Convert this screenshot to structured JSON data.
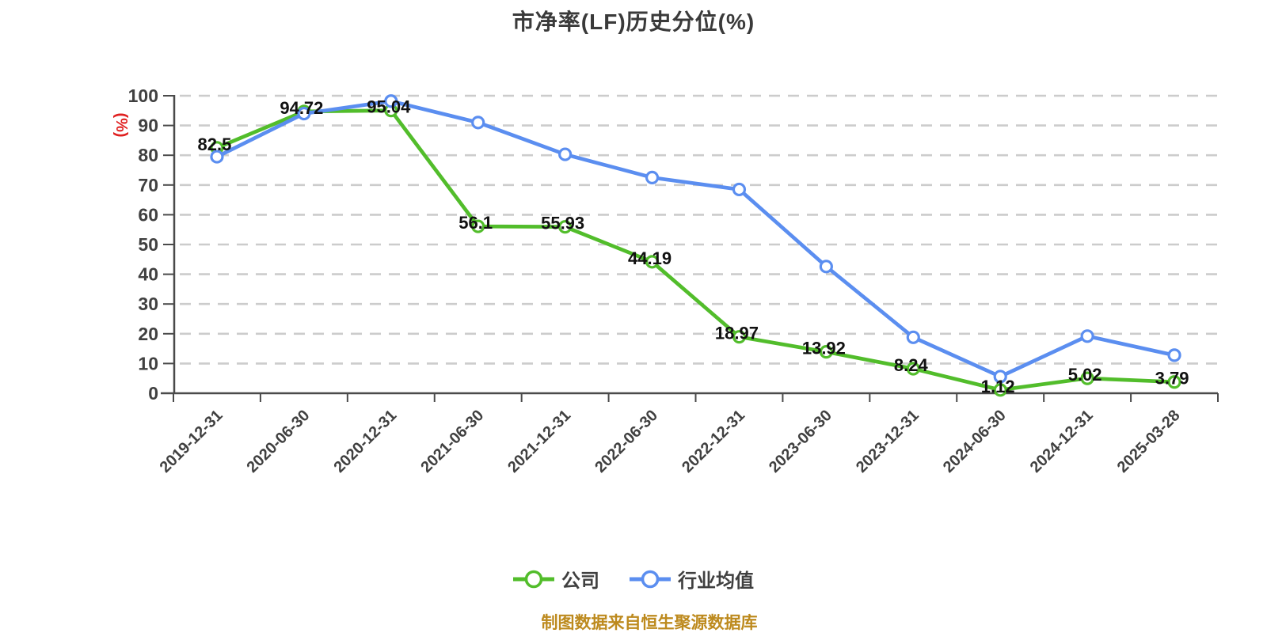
{
  "footer": "制图数据来自恒生聚源数据库",
  "chart_data": {
    "type": "line",
    "title": "市净率(LF)历史分位(%)",
    "y_axis_unit": "(%)",
    "ylim": [
      0,
      100
    ],
    "y_ticks": [
      0,
      10,
      20,
      30,
      40,
      50,
      60,
      70,
      80,
      90,
      100
    ],
    "grid": "horizontal-dashed",
    "legend_position": "bottom-center",
    "x_label_rotation": 45,
    "categories": [
      "2019-12-31",
      "2020-06-30",
      "2020-12-31",
      "2021-06-30",
      "2021-12-31",
      "2022-06-30",
      "2022-12-31",
      "2023-06-30",
      "2023-12-31",
      "2024-06-30",
      "2024-12-31",
      "2025-03-28"
    ],
    "series": [
      {
        "name": "公司",
        "color": "#52bd2b",
        "values": [
          82.5,
          94.72,
          95.04,
          56.1,
          55.93,
          44.19,
          18.97,
          13.92,
          8.24,
          1.12,
          5.02,
          3.79
        ],
        "point_labels": [
          "82.5",
          "94.72",
          "95.04",
          "56.1",
          "55.93",
          "44.19",
          "18.97",
          "13.92",
          "8.24",
          "1.12",
          "5.02",
          "3.79"
        ],
        "labels_visible": true
      },
      {
        "name": "行业均值",
        "color": "#5b8ef0",
        "values": [
          79.5,
          94,
          98.2,
          91,
          80.3,
          72.5,
          68.5,
          42.6,
          18.8,
          5.6,
          19.2,
          12.8
        ],
        "point_labels": [],
        "labels_visible": false
      }
    ],
    "style": {
      "axis_color": "#4a4a4a",
      "grid_color": "#cccccc",
      "tick_label_color": "#404040",
      "data_label_color": "#111111",
      "unit_label_color": "#e02020",
      "title_color": "#3a3a3a",
      "footer_color": "#bd8a1e",
      "marker_fill": "#ffffff"
    }
  }
}
